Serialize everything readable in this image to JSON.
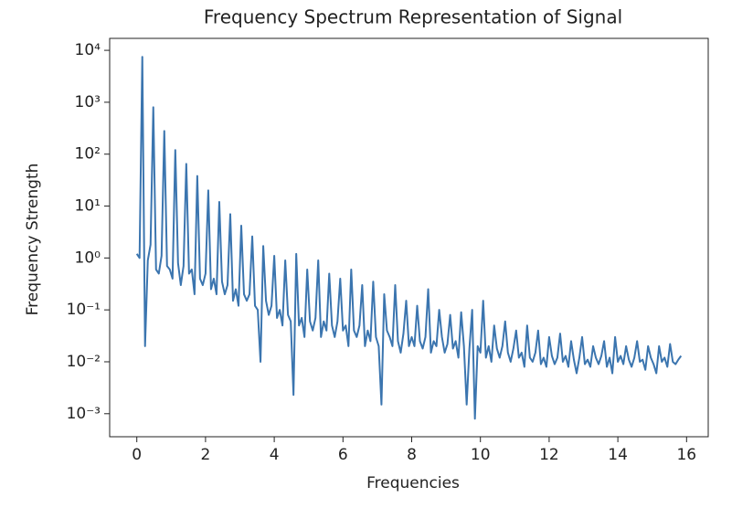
{
  "chart_data": {
    "type": "line",
    "title": "Frequency Spectrum Representation of Signal",
    "x_label": "Frequencies",
    "y_label": "Frequency Strength",
    "log_y": true,
    "color": "#3b75af",
    "xlim": [
      -0.79,
      16.63
    ],
    "xticks": [
      0,
      2,
      4,
      6,
      8,
      10,
      12,
      14,
      16
    ],
    "ylim": [
      0.00036,
      17000
    ],
    "yticks": [
      {
        "value": 0.001,
        "label": "10⁻³"
      },
      {
        "value": 0.01,
        "label": "10⁻²"
      },
      {
        "value": 0.1,
        "label": "10⁻¹"
      },
      {
        "value": 1,
        "label": "10⁰"
      },
      {
        "value": 10,
        "label": "10¹"
      },
      {
        "value": 100,
        "label": "10²"
      },
      {
        "value": 1000,
        "label": "10³"
      },
      {
        "value": 10000,
        "label": "10⁴"
      }
    ],
    "x": [
      0,
      0.08,
      0.16,
      0.24,
      0.32,
      0.4,
      0.48,
      0.56,
      0.64,
      0.72,
      0.8,
      0.88,
      0.96,
      1.04,
      1.12,
      1.2,
      1.28,
      1.36,
      1.44,
      1.52,
      1.6,
      1.68,
      1.76,
      1.84,
      1.92,
      2,
      2.08,
      2.16,
      2.24,
      2.32,
      2.4,
      2.48,
      2.56,
      2.64,
      2.72,
      2.8,
      2.88,
      2.96,
      3.04,
      3.12,
      3.2,
      3.28,
      3.36,
      3.44,
      3.52,
      3.6,
      3.68,
      3.76,
      3.84,
      3.92,
      4,
      4.08,
      4.16,
      4.24,
      4.32,
      4.4,
      4.48,
      4.56,
      4.64,
      4.72,
      4.8,
      4.88,
      4.96,
      5.04,
      5.12,
      5.2,
      5.28,
      5.36,
      5.44,
      5.52,
      5.6,
      5.68,
      5.76,
      5.84,
      5.92,
      6,
      6.08,
      6.16,
      6.24,
      6.32,
      6.4,
      6.48,
      6.56,
      6.64,
      6.72,
      6.8,
      6.88,
      6.96,
      7.04,
      7.12,
      7.2,
      7.28,
      7.36,
      7.44,
      7.52,
      7.6,
      7.68,
      7.76,
      7.84,
      7.92,
      8,
      8.08,
      8.16,
      8.24,
      8.32,
      8.4,
      8.48,
      8.56,
      8.64,
      8.72,
      8.8,
      8.88,
      8.96,
      9.04,
      9.12,
      9.2,
      9.28,
      9.36,
      9.44,
      9.52,
      9.6,
      9.68,
      9.76,
      9.84,
      9.92,
      10,
      10.08,
      10.16,
      10.24,
      10.32,
      10.4,
      10.48,
      10.56,
      10.64,
      10.72,
      10.8,
      10.88,
      10.96,
      11.04,
      11.12,
      11.2,
      11.28,
      11.36,
      11.44,
      11.52,
      11.6,
      11.68,
      11.76,
      11.84,
      11.92,
      12,
      12.08,
      12.16,
      12.24,
      12.32,
      12.4,
      12.48,
      12.56,
      12.64,
      12.72,
      12.8,
      12.88,
      12.96,
      13.04,
      13.12,
      13.2,
      13.28,
      13.36,
      13.44,
      13.52,
      13.6,
      13.68,
      13.76,
      13.84,
      13.92,
      14,
      14.08,
      14.16,
      14.24,
      14.32,
      14.4,
      14.48,
      14.56,
      14.64,
      14.72,
      14.8,
      14.88,
      14.96,
      15.04,
      15.12,
      15.2,
      15.28,
      15.36,
      15.44,
      15.52,
      15.6,
      15.68,
      15.76,
      15.84
    ],
    "values": [
      1.2,
      1.0,
      7500,
      0.02,
      0.9,
      1.8,
      800,
      0.6,
      0.5,
      1.1,
      280,
      0.7,
      0.6,
      0.4,
      120,
      0.8,
      0.3,
      0.7,
      65,
      0.5,
      0.6,
      0.2,
      38,
      0.4,
      0.3,
      0.5,
      20,
      0.25,
      0.4,
      0.2,
      12,
      0.35,
      0.2,
      0.3,
      7,
      0.15,
      0.25,
      0.12,
      4.2,
      0.2,
      0.15,
      0.2,
      2.6,
      0.12,
      0.1,
      0.01,
      1.7,
      0.15,
      0.08,
      0.12,
      1.1,
      0.07,
      0.1,
      0.05,
      0.9,
      0.08,
      0.06,
      0.0023,
      1.2,
      0.05,
      0.07,
      0.03,
      0.6,
      0.06,
      0.04,
      0.07,
      0.9,
      0.03,
      0.06,
      0.04,
      0.5,
      0.05,
      0.03,
      0.06,
      0.4,
      0.04,
      0.05,
      0.02,
      0.6,
      0.04,
      0.03,
      0.05,
      0.3,
      0.02,
      0.04,
      0.025,
      0.35,
      0.03,
      0.02,
      0.0015,
      0.2,
      0.04,
      0.03,
      0.02,
      0.3,
      0.025,
      0.015,
      0.035,
      0.15,
      0.02,
      0.03,
      0.02,
      0.12,
      0.025,
      0.018,
      0.03,
      0.25,
      0.015,
      0.025,
      0.02,
      0.1,
      0.03,
      0.015,
      0.022,
      0.08,
      0.018,
      0.025,
      0.012,
      0.09,
      0.02,
      0.0015,
      0.018,
      0.1,
      0.0008,
      0.02,
      0.015,
      0.15,
      0.012,
      0.02,
      0.01,
      0.05,
      0.018,
      0.012,
      0.02,
      0.06,
      0.015,
      0.01,
      0.018,
      0.04,
      0.012,
      0.015,
      0.008,
      0.05,
      0.012,
      0.01,
      0.015,
      0.04,
      0.009,
      0.012,
      0.008,
      0.03,
      0.013,
      0.009,
      0.012,
      0.035,
      0.01,
      0.013,
      0.008,
      0.025,
      0.011,
      0.006,
      0.012,
      0.03,
      0.009,
      0.011,
      0.008,
      0.02,
      0.012,
      0.009,
      0.013,
      0.025,
      0.008,
      0.012,
      0.006,
      0.03,
      0.01,
      0.013,
      0.009,
      0.02,
      0.011,
      0.008,
      0.012,
      0.025,
      0.01,
      0.011,
      0.007,
      0.02,
      0.012,
      0.009,
      0.006,
      0.02,
      0.01,
      0.012,
      0.008,
      0.022,
      0.01,
      0.009,
      0.011,
      0.013
    ]
  }
}
